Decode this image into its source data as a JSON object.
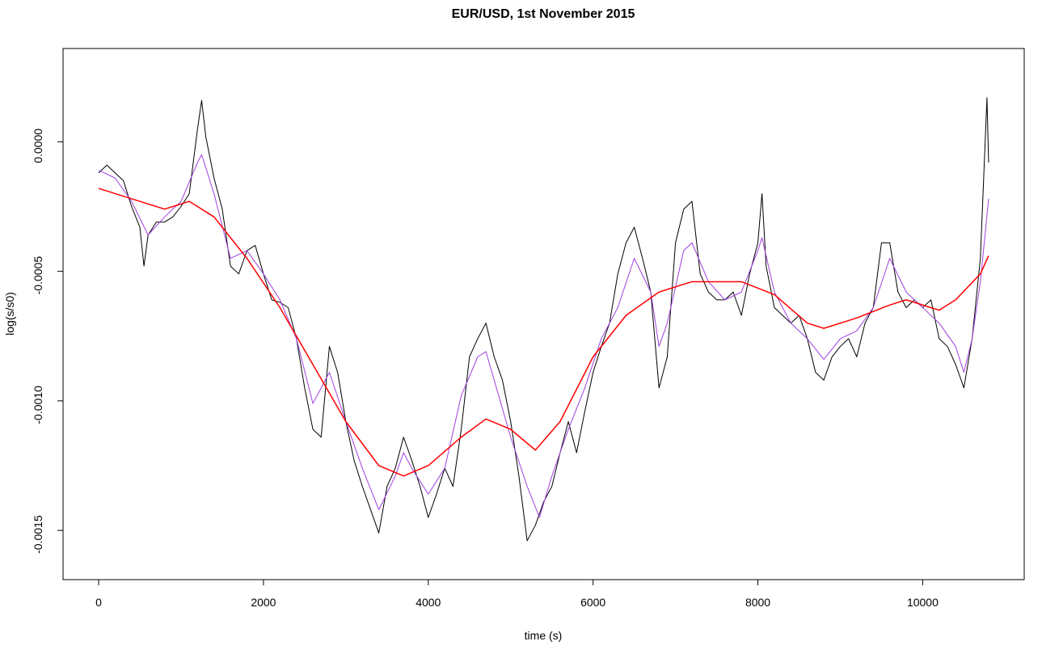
{
  "chart_data": {
    "type": "line",
    "title": "EUR/USD, 1st November 2015",
    "x_label": "time (s)",
    "y_label": "log(s/s0)",
    "xlim": [
      -432,
      11232
    ],
    "ylim": [
      -0.00169,
      0.00036
    ],
    "xticks": [
      0,
      2000,
      4000,
      6000,
      8000,
      10000
    ],
    "yticks": [
      {
        "value": 0,
        "label": "0.0000"
      },
      -0.0005,
      {
        "value": -0.001,
        "label": "-0.0010"
      },
      -0.0015
    ],
    "series": [
      {
        "color": "#000000",
        "x": [
          0,
          100,
          200,
          300,
          400,
          500,
          550,
          600,
          700,
          800,
          900,
          1000,
          1100,
          1200,
          1250,
          1300,
          1400,
          1500,
          1600,
          1700,
          1800,
          1900,
          2000,
          2100,
          2200,
          2300,
          2400,
          2500,
          2600,
          2700,
          2800,
          2900,
          3000,
          3100,
          3200,
          3300,
          3400,
          3500,
          3600,
          3700,
          3800,
          3900,
          4000,
          4100,
          4200,
          4300,
          4400,
          4500,
          4600,
          4700,
          4800,
          4900,
          5000,
          5100,
          5200,
          5300,
          5400,
          5500,
          5600,
          5700,
          5800,
          5900,
          6000,
          6100,
          6200,
          6300,
          6400,
          6500,
          6600,
          6700,
          6800,
          6900,
          7000,
          7100,
          7200,
          7300,
          7400,
          7500,
          7600,
          7700,
          7800,
          7900,
          8000,
          8050,
          8100,
          8200,
          8300,
          8400,
          8500,
          8600,
          8700,
          8800,
          8900,
          9000,
          9100,
          9200,
          9300,
          9400,
          9500,
          9600,
          9700,
          9800,
          9900,
          10000,
          10100,
          10200,
          10300,
          10400,
          10500,
          10600,
          10700,
          10780,
          10800
        ],
        "values": [
          -0.00012,
          -9e-05,
          -0.00012,
          -0.00015,
          -0.00025,
          -0.00033,
          -0.00048,
          -0.00036,
          -0.00031,
          -0.00031,
          -0.00029,
          -0.00025,
          -0.0002,
          5e-05,
          0.00016,
          2e-05,
          -0.00014,
          -0.00026,
          -0.00048,
          -0.00051,
          -0.00042,
          -0.0004,
          -0.00051,
          -0.00061,
          -0.00062,
          -0.00064,
          -0.00076,
          -0.00095,
          -0.00111,
          -0.00114,
          -0.00079,
          -0.00089,
          -0.00108,
          -0.00123,
          -0.00133,
          -0.00142,
          -0.00151,
          -0.00133,
          -0.00126,
          -0.00114,
          -0.00123,
          -0.00133,
          -0.00145,
          -0.00136,
          -0.00126,
          -0.00133,
          -0.00111,
          -0.00083,
          -0.00076,
          -0.0007,
          -0.00083,
          -0.00092,
          -0.00108,
          -0.00129,
          -0.00154,
          -0.00148,
          -0.00139,
          -0.00133,
          -0.0012,
          -0.00108,
          -0.0012,
          -0.00104,
          -0.00089,
          -0.00079,
          -0.0007,
          -0.00051,
          -0.00039,
          -0.00033,
          -0.00045,
          -0.00058,
          -0.00095,
          -0.00083,
          -0.00039,
          -0.00026,
          -0.00023,
          -0.00051,
          -0.00058,
          -0.00061,
          -0.00061,
          -0.00058,
          -0.00067,
          -0.00051,
          -0.00039,
          -0.0002,
          -0.00048,
          -0.00064,
          -0.00067,
          -0.0007,
          -0.00067,
          -0.00076,
          -0.00089,
          -0.00092,
          -0.00083,
          -0.00079,
          -0.00076,
          -0.00083,
          -0.0007,
          -0.00064,
          -0.00039,
          -0.00039,
          -0.00058,
          -0.00064,
          -0.00061,
          -0.00064,
          -0.00061,
          -0.00076,
          -0.00079,
          -0.00086,
          -0.00095,
          -0.00076,
          -0.00045,
          0.00017,
          -8e-05
        ]
      },
      {
        "color": "#a040e0",
        "x": [
          0,
          200,
          400,
          600,
          800,
          1000,
          1200,
          1250,
          1400,
          1600,
          1800,
          2000,
          2200,
          2400,
          2600,
          2800,
          3000,
          3200,
          3400,
          3600,
          3700,
          3800,
          4000,
          4200,
          4400,
          4600,
          4700,
          4800,
          5000,
          5200,
          5350,
          5500,
          5700,
          5900,
          6100,
          6300,
          6500,
          6700,
          6800,
          6900,
          7100,
          7200,
          7400,
          7600,
          7800,
          8000,
          8050,
          8200,
          8400,
          8600,
          8800,
          9000,
          9200,
          9400,
          9600,
          9800,
          10000,
          10200,
          10400,
          10500,
          10600,
          10700,
          10800
        ],
        "values": [
          -0.00011,
          -0.00014,
          -0.00023,
          -0.00036,
          -0.00029,
          -0.00023,
          -8e-05,
          -5e-05,
          -0.0002,
          -0.00045,
          -0.00042,
          -0.00051,
          -0.00061,
          -0.00076,
          -0.00101,
          -0.00089,
          -0.00108,
          -0.00126,
          -0.00142,
          -0.00129,
          -0.0012,
          -0.00126,
          -0.00136,
          -0.00126,
          -0.00098,
          -0.00083,
          -0.00081,
          -0.00092,
          -0.00114,
          -0.00133,
          -0.00145,
          -0.00129,
          -0.00111,
          -0.00095,
          -0.00076,
          -0.00064,
          -0.00045,
          -0.00058,
          -0.00079,
          -0.0007,
          -0.00042,
          -0.00039,
          -0.00054,
          -0.00061,
          -0.00058,
          -0.00042,
          -0.00037,
          -0.00058,
          -0.0007,
          -0.00076,
          -0.00084,
          -0.00076,
          -0.00073,
          -0.00064,
          -0.00045,
          -0.00058,
          -0.00064,
          -0.0007,
          -0.00079,
          -0.00089,
          -0.00076,
          -0.00054,
          -0.00022
        ]
      },
      {
        "color": "#ff0000",
        "x": [
          0,
          500,
          800,
          1100,
          1400,
          1800,
          2200,
          2600,
          3000,
          3400,
          3700,
          4000,
          4400,
          4700,
          5000,
          5300,
          5600,
          6000,
          6400,
          6800,
          7200,
          7600,
          7800,
          8200,
          8600,
          8800,
          9200,
          9600,
          9800,
          10200,
          10400,
          10700,
          10800
        ],
        "values": [
          -0.00018,
          -0.00023,
          -0.00026,
          -0.00023,
          -0.00029,
          -0.00045,
          -0.00064,
          -0.00086,
          -0.00108,
          -0.00125,
          -0.00129,
          -0.00125,
          -0.00114,
          -0.00107,
          -0.00111,
          -0.00119,
          -0.00108,
          -0.00083,
          -0.00067,
          -0.00058,
          -0.00054,
          -0.00054,
          -0.00054,
          -0.00059,
          -0.0007,
          -0.00072,
          -0.00068,
          -0.00063,
          -0.00061,
          -0.00065,
          -0.00061,
          -0.00051,
          -0.00044
        ]
      }
    ]
  }
}
